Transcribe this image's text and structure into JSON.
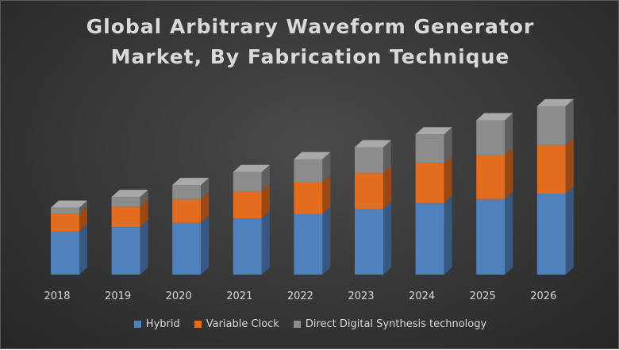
{
  "title_lines": [
    "Global Arbitrary Waveform Generator",
    "Market, By Fabrication Technique"
  ],
  "chart_data": {
    "type": "bar",
    "subtype": "stacked-3d-column",
    "categories": [
      "2018",
      "2019",
      "2020",
      "2021",
      "2022",
      "2023",
      "2024",
      "2025",
      "2026"
    ],
    "series": [
      {
        "name": "Hybrid",
        "color": "#4f81bd",
        "values": [
          40,
          44,
          48,
          52,
          56,
          61,
          66,
          70,
          75
        ]
      },
      {
        "name": "Variable Clock",
        "color": "#e36c1f",
        "values": [
          16,
          19,
          22,
          25,
          30,
          33,
          37,
          41,
          45
        ]
      },
      {
        "name": "Direct Digital Synthesis technology",
        "color": "#8c8c8c",
        "values": [
          6,
          9,
          13,
          18,
          21,
          24,
          27,
          32,
          36
        ]
      }
    ],
    "ylim": [
      0,
      160
    ],
    "grid": false,
    "legend_position": "bottom"
  }
}
